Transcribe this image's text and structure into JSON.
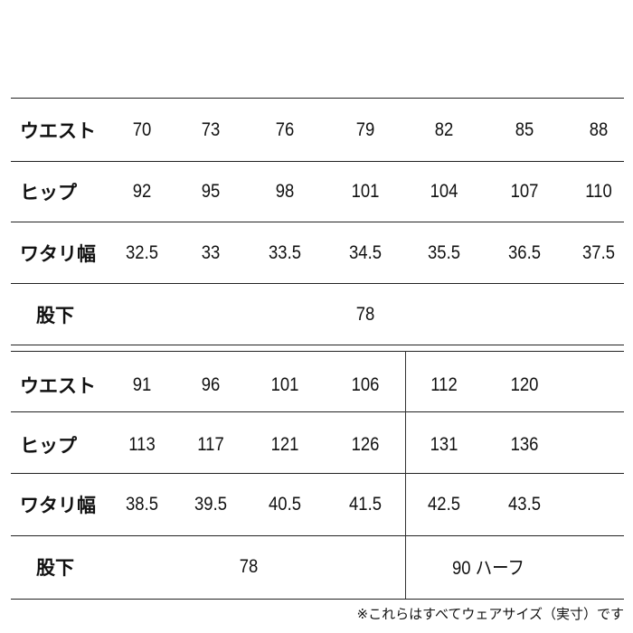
{
  "table1": {
    "rows": [
      {
        "label": "ウエスト",
        "values": [
          "70",
          "73",
          "76",
          "79",
          "82",
          "85",
          "88"
        ]
      },
      {
        "label": "ヒップ",
        "values": [
          "92",
          "95",
          "98",
          "101",
          "104",
          "107",
          "110"
        ]
      },
      {
        "label": "ワタリ幅",
        "values": [
          "32.5",
          "33",
          "33.5",
          "34.5",
          "35.5",
          "36.5",
          "37.5"
        ]
      }
    ],
    "inseam": {
      "label": "股下",
      "value": "78"
    }
  },
  "table2": {
    "rows": [
      {
        "label": "ウエスト",
        "values": [
          "91",
          "96",
          "101",
          "106",
          "112",
          "120"
        ]
      },
      {
        "label": "ヒップ",
        "values": [
          "113",
          "117",
          "121",
          "126",
          "131",
          "136"
        ]
      },
      {
        "label": "ワタリ幅",
        "values": [
          "38.5",
          "39.5",
          "40.5",
          "41.5",
          "42.5",
          "43.5"
        ]
      }
    ],
    "inseam": {
      "label": "股下",
      "value_left": "78",
      "value_right": "90 ハーフ"
    }
  },
  "note": "※これらはすべてウェアサイズ（実寸）です"
}
